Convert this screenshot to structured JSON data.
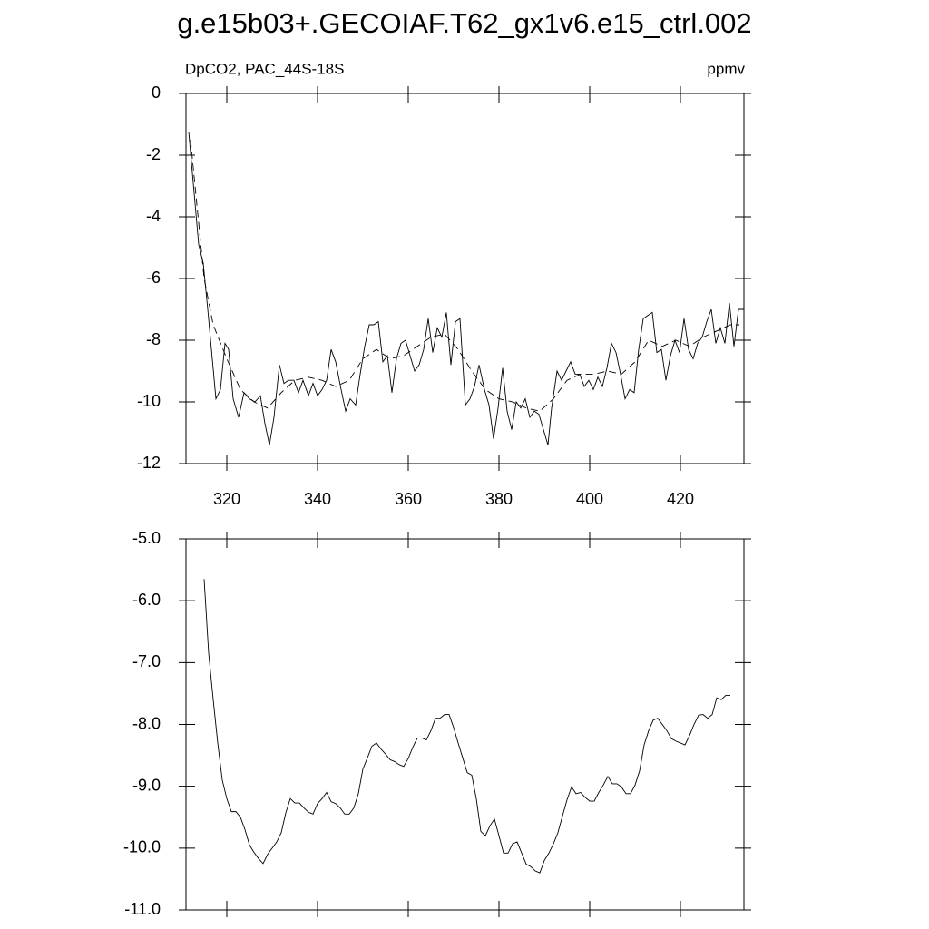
{
  "title": "g.e15b03+.GECOIAF.T62_gx1v6.e15_ctrl.002",
  "chart_data": [
    {
      "type": "line",
      "subtitle_left": "DpCO2, PAC_44S-18S",
      "subtitle_right": "ppmv",
      "xlim": [
        311,
        434
      ],
      "xticks": [
        320,
        340,
        360,
        380,
        400,
        420
      ],
      "ylim": [
        -12,
        0
      ],
      "yticks": [
        -12,
        -10,
        -8,
        -6,
        -4,
        -2,
        0
      ],
      "series": [
        {
          "color": "#000000",
          "dash": false,
          "x": [
            311.6,
            313.8,
            314.8,
            315.8,
            317.6,
            318.6,
            319.6,
            320.4,
            321.4,
            322.6,
            323.8,
            325,
            326.2,
            327.4,
            328.4,
            329.4,
            330.4,
            331.6,
            332.6,
            333.6,
            334.8,
            335.8,
            336.8,
            338,
            339,
            340,
            341,
            342,
            343,
            344,
            345.2,
            346.2,
            347.2,
            348.4,
            349.4,
            350.4,
            351.4,
            352.4,
            353.4,
            354.4,
            355.4,
            356.4,
            357.4,
            358.4,
            359.4,
            360.4,
            361.4,
            362.4,
            363.4,
            364.4,
            365.4,
            366.4,
            367.4,
            368.4,
            369.4,
            370.4,
            371.4,
            372.6,
            373.6,
            374.6,
            375.6,
            376.8,
            377.8,
            378.8,
            379.8,
            380.8,
            381.8,
            382.8,
            383.8,
            384.8,
            385.8,
            386.8,
            387.8,
            388.8,
            389.8,
            390.8,
            391.6,
            392.8,
            393.8,
            394.8,
            395.8,
            396.8,
            397.8,
            398.8,
            399.8,
            400.8,
            401.8,
            402.8,
            403.8,
            404.8,
            405.8,
            406.8,
            407.8,
            408.8,
            409.8,
            410.8,
            411.8,
            412.8,
            413.8,
            414.8,
            415.8,
            416.8,
            417.8,
            418.8,
            419.8,
            420.8,
            421.8,
            422.8,
            423.8,
            424.8,
            425.8,
            426.8,
            427.8,
            428.8,
            429.8,
            430.8,
            431.8,
            432.8,
            434
          ],
          "values": [
            -1.24,
            -4.9,
            -5.5,
            -7.0,
            -9.9,
            -9.6,
            -8.1,
            -8.3,
            -9.9,
            -10.5,
            -9.7,
            -9.9,
            -10.0,
            -9.8,
            -10.7,
            -11.4,
            -10.5,
            -8.8,
            -9.4,
            -9.3,
            -9.3,
            -9.7,
            -9.3,
            -9.8,
            -9.4,
            -9.8,
            -9.6,
            -9.3,
            -8.3,
            -8.7,
            -9.6,
            -10.3,
            -9.9,
            -10.1,
            -9.1,
            -8.2,
            -7.5,
            -7.5,
            -7.4,
            -8.7,
            -8.5,
            -9.7,
            -8.6,
            -8.1,
            -8.0,
            -8.5,
            -9.0,
            -8.8,
            -8.3,
            -7.3,
            -8.4,
            -7.6,
            -7.9,
            -7.1,
            -8.8,
            -7.4,
            -7.3,
            -10.1,
            -9.9,
            -9.5,
            -8.8,
            -9.6,
            -10.1,
            -11.2,
            -10.2,
            -8.9,
            -10.3,
            -10.9,
            -10.0,
            -10.2,
            -9.9,
            -10.5,
            -10.3,
            -10.4,
            -10.9,
            -11.4,
            -10.2,
            -9.0,
            -9.3,
            -9.0,
            -8.7,
            -9.1,
            -9.1,
            -9.5,
            -9.3,
            -9.6,
            -9.2,
            -9.5,
            -8.9,
            -8.1,
            -8.4,
            -9.1,
            -9.9,
            -9.6,
            -9.7,
            -8.3,
            -7.3,
            -7.2,
            -7.1,
            -8.4,
            -8.3,
            -9.3,
            -8.5,
            -8.0,
            -8.4,
            -7.3,
            -8.3,
            -8.6,
            -8.1,
            -7.9,
            -7.4,
            -7.0,
            -8.1,
            -7.6,
            -8.1,
            -6.8,
            -8.2,
            -7.0,
            -7.0
          ]
        },
        {
          "color": "#000000",
          "dash": true,
          "x": [
            312,
            315,
            317,
            320,
            323,
            326,
            329,
            332,
            335,
            338,
            341,
            344,
            347,
            350,
            353,
            356,
            359,
            362,
            365,
            368,
            371,
            374,
            377,
            380,
            383,
            386,
            389,
            392,
            395,
            398,
            401,
            404,
            407,
            410,
            413,
            416,
            419,
            422,
            425,
            428,
            431,
            433
          ],
          "values": [
            -1.5,
            -6.0,
            -7.5,
            -8.6,
            -9.6,
            -10.0,
            -10.2,
            -9.7,
            -9.3,
            -9.2,
            -9.3,
            -9.5,
            -9.3,
            -8.6,
            -8.3,
            -8.6,
            -8.5,
            -8.2,
            -7.9,
            -7.8,
            -8.3,
            -9.0,
            -9.6,
            -9.9,
            -10.0,
            -10.2,
            -10.3,
            -9.9,
            -9.3,
            -9.1,
            -9.1,
            -9.0,
            -9.1,
            -8.7,
            -8.0,
            -8.2,
            -8.0,
            -8.2,
            -7.9,
            -7.7,
            -7.5,
            -7.5
          ]
        }
      ]
    },
    {
      "type": "line",
      "xlim": [
        311,
        434
      ],
      "xticks": [
        320,
        340,
        360,
        380,
        400,
        420
      ],
      "ylim": [
        -11,
        -5
      ],
      "yticks": [
        {
          "value": -11,
          "label": "-11.0"
        },
        {
          "value": -10,
          "label": "-10.0"
        },
        {
          "value": -9,
          "label": "-9.0"
        },
        {
          "value": -8,
          "label": "-8.0"
        },
        {
          "value": -7,
          "label": "-7.0"
        },
        {
          "value": -6,
          "label": "-6.0"
        },
        {
          "value": -5,
          "label": "-5.0"
        }
      ],
      "series": [
        {
          "color": "#000000",
          "dash": false,
          "x": [
            315,
            316,
            317,
            318,
            319,
            320,
            321,
            322,
            323,
            324,
            325,
            326,
            327,
            328,
            329,
            330,
            331,
            332,
            333,
            334,
            335,
            336,
            337,
            338,
            339,
            340,
            341,
            342,
            343,
            344,
            345,
            346,
            347,
            348,
            349,
            350,
            351,
            352,
            353,
            354,
            355,
            356,
            357,
            358,
            359,
            360,
            361,
            362,
            363,
            364,
            365,
            366,
            367,
            368,
            369,
            370,
            371,
            372,
            373,
            374,
            375,
            376,
            377,
            378,
            379,
            380,
            381,
            382,
            383,
            384,
            385,
            386,
            387,
            388,
            389,
            390,
            391,
            392,
            393,
            394,
            395,
            396,
            397,
            398,
            399,
            400,
            401,
            402,
            403,
            404,
            405,
            406,
            407,
            408,
            409,
            410,
            411,
            412,
            413,
            414,
            415,
            416,
            417,
            418,
            419,
            420,
            421,
            422,
            423,
            424,
            425,
            426,
            427,
            428,
            429,
            430,
            431
          ],
          "values": [
            -5.65,
            -6.85,
            -7.6,
            -8.3,
            -8.9,
            -9.2,
            -9.41,
            -9.41,
            -9.5,
            -9.7,
            -9.95,
            -10.07,
            -10.17,
            -10.25,
            -10.1,
            -10.0,
            -9.9,
            -9.75,
            -9.43,
            -9.2,
            -9.27,
            -9.27,
            -9.35,
            -9.42,
            -9.45,
            -9.28,
            -9.2,
            -9.1,
            -9.25,
            -9.28,
            -9.35,
            -9.45,
            -9.45,
            -9.35,
            -9.12,
            -8.72,
            -8.54,
            -8.35,
            -8.3,
            -8.4,
            -8.48,
            -8.57,
            -8.6,
            -8.65,
            -8.68,
            -8.55,
            -8.37,
            -8.22,
            -8.22,
            -8.25,
            -8.1,
            -7.9,
            -7.9,
            -7.84,
            -7.84,
            -8.05,
            -8.3,
            -8.54,
            -8.78,
            -8.82,
            -9.2,
            -9.73,
            -9.8,
            -9.64,
            -9.53,
            -9.8,
            -10.08,
            -10.08,
            -9.93,
            -9.9,
            -10.08,
            -10.26,
            -10.3,
            -10.37,
            -10.4,
            -10.2,
            -10.08,
            -9.93,
            -9.75,
            -9.48,
            -9.22,
            -9.01,
            -9.12,
            -9.1,
            -9.18,
            -9.24,
            -9.24,
            -9.1,
            -8.98,
            -8.84,
            -8.96,
            -8.96,
            -9.01,
            -9.12,
            -9.12,
            -8.98,
            -8.75,
            -8.33,
            -8.1,
            -7.93,
            -7.9,
            -8.0,
            -8.1,
            -8.23,
            -8.27,
            -8.3,
            -8.33,
            -8.18,
            -8.0,
            -7.85,
            -7.84,
            -7.9,
            -7.84,
            -7.57,
            -7.6,
            -7.53,
            -7.53
          ]
        }
      ]
    }
  ]
}
